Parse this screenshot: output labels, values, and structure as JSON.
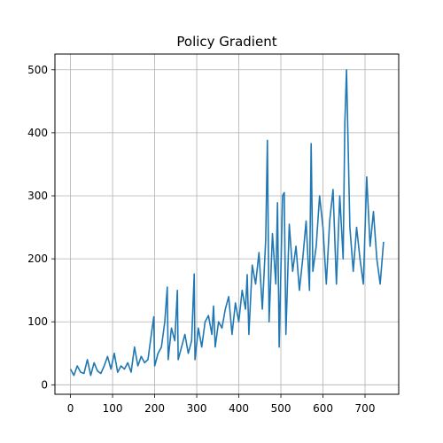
{
  "chart_data": {
    "type": "line",
    "title": "Policy Gradient",
    "xlabel": "",
    "ylabel": "",
    "xlim": [
      -37,
      780
    ],
    "ylim": [
      -15,
      525
    ],
    "xticks": [
      0,
      100,
      200,
      300,
      400,
      500,
      600,
      700
    ],
    "yticks": [
      0,
      100,
      200,
      300,
      400,
      500
    ],
    "grid": true,
    "legend": "none",
    "series": [
      {
        "color": "#1f77b4",
        "x": [
          0,
          8,
          16,
          24,
          32,
          40,
          48,
          56,
          64,
          72,
          80,
          88,
          96,
          104,
          112,
          120,
          128,
          136,
          144,
          152,
          160,
          168,
          176,
          184,
          192,
          198,
          200,
          208,
          216,
          224,
          230,
          232,
          240,
          248,
          254,
          256,
          264,
          272,
          280,
          288,
          294,
          296,
          304,
          312,
          320,
          328,
          336,
          340,
          344,
          352,
          360,
          368,
          376,
          384,
          392,
          400,
          408,
          416,
          420,
          424,
          432,
          440,
          448,
          456,
          464,
          468,
          472,
          480,
          488,
          492,
          496,
          504,
          508,
          512,
          520,
          528,
          536,
          544,
          552,
          560,
          568,
          572,
          576,
          584,
          592,
          600,
          608,
          616,
          624,
          632,
          640,
          648,
          652,
          656,
          664,
          672,
          680,
          688,
          696,
          704,
          712,
          720,
          728,
          736,
          744
        ],
        "y": [
          25,
          15,
          30,
          20,
          18,
          40,
          15,
          35,
          22,
          18,
          30,
          45,
          25,
          50,
          20,
          30,
          25,
          35,
          20,
          60,
          30,
          45,
          35,
          40,
          80,
          108,
          30,
          50,
          60,
          100,
          155,
          40,
          90,
          70,
          150,
          40,
          60,
          80,
          50,
          70,
          176,
          40,
          90,
          60,
          100,
          110,
          80,
          125,
          60,
          100,
          90,
          120,
          140,
          80,
          130,
          100,
          150,
          120,
          175,
          80,
          190,
          160,
          210,
          120,
          230,
          388,
          100,
          240,
          160,
          289,
          60,
          300,
          305,
          80,
          255,
          180,
          220,
          150,
          200,
          260,
          150,
          383,
          180,
          220,
          300,
          250,
          160,
          260,
          310,
          160,
          300,
          200,
          415,
          500,
          250,
          180,
          250,
          200,
          160,
          330,
          220,
          275,
          200,
          160,
          227
        ]
      }
    ]
  }
}
